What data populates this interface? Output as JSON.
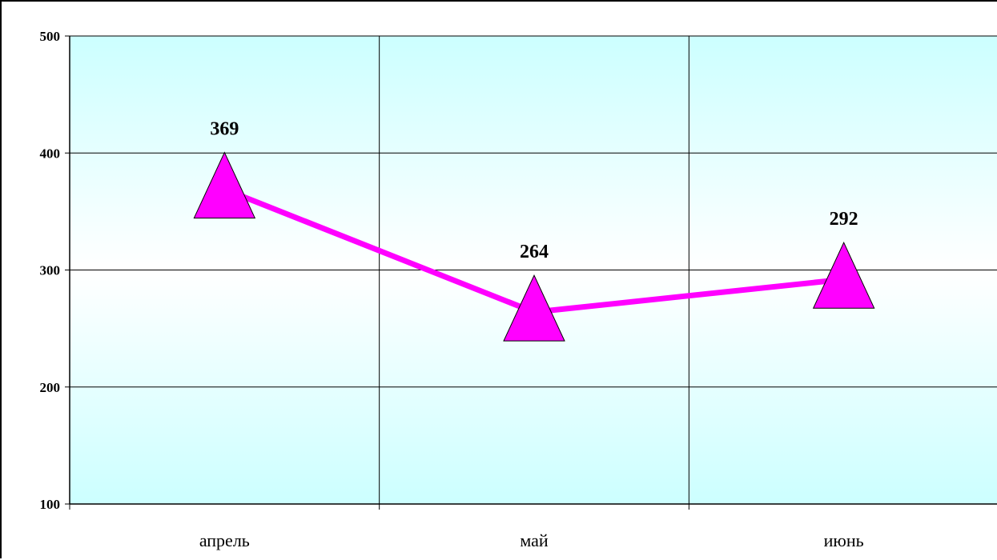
{
  "chart_data": {
    "type": "line",
    "title": "",
    "xlabel": "",
    "ylabel": "",
    "categories": [
      "апрель",
      "май",
      "июнь"
    ],
    "series": [
      {
        "values": [
          369,
          264,
          292
        ],
        "color": "#ff00ff",
        "marker": "triangle"
      }
    ],
    "data_labels": [
      "369",
      "264",
      "292"
    ],
    "ylim": [
      100,
      500
    ],
    "y_ticks": [
      "100",
      "200",
      "300",
      "400",
      "500"
    ],
    "grid": true,
    "legend": "none",
    "colors": {
      "plot_background_edge": "#ccffff",
      "plot_background_center": "#ffffff",
      "line": "#ff00ff",
      "marker_fill": "#ff00ff",
      "marker_stroke": "#000000"
    }
  }
}
